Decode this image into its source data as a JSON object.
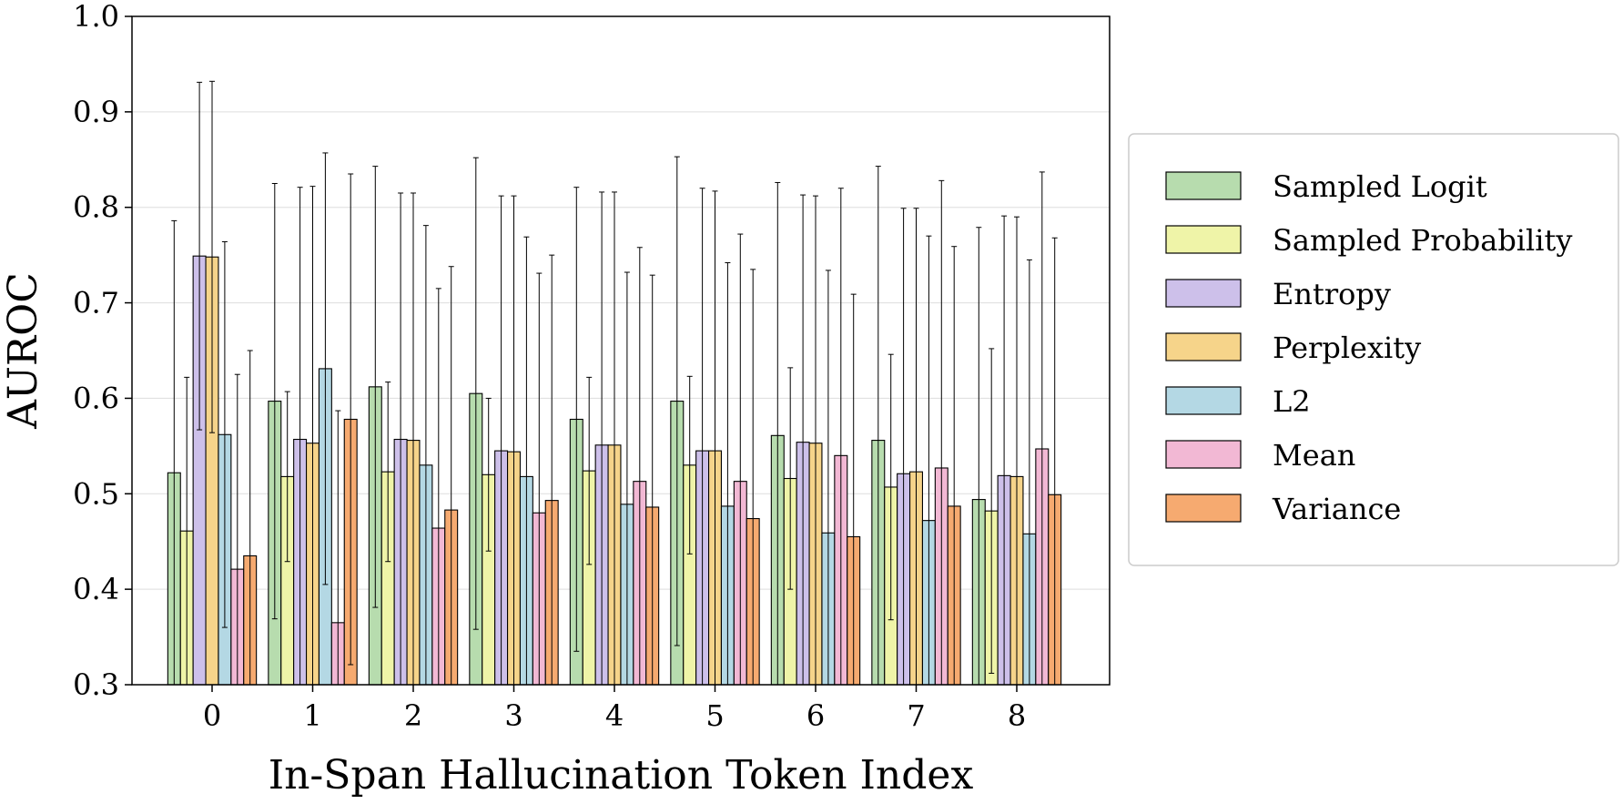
{
  "chart_data": {
    "type": "bar",
    "title": "",
    "xlabel": "In-Span Hallucination Token Index",
    "ylabel": "AUROC",
    "categories": [
      "0",
      "1",
      "2",
      "3",
      "4",
      "5",
      "6",
      "7",
      "8"
    ],
    "ylim": [
      0.3,
      1.0
    ],
    "yticks": [
      "0.3",
      "0.4",
      "0.5",
      "0.6",
      "0.7",
      "0.8",
      "0.9",
      "1.0"
    ],
    "grid": true,
    "legend_position": "right",
    "error_bars": true,
    "series": [
      {
        "name": "Sampled Logit",
        "color": "#b7dcae",
        "values": [
          0.522,
          0.597,
          0.612,
          0.605,
          0.578,
          0.597,
          0.561,
          0.556,
          0.494
        ],
        "errors": [
          0.264,
          0.228,
          0.231,
          0.247,
          0.243,
          0.256,
          0.265,
          0.287,
          0.285
        ]
      },
      {
        "name": "Sampled Probability",
        "color": "#eff4a8",
        "values": [
          0.461,
          0.518,
          0.523,
          0.52,
          0.524,
          0.53,
          0.516,
          0.507,
          0.482
        ],
        "errors": [
          0.161,
          0.089,
          0.094,
          0.08,
          0.098,
          0.093,
          0.116,
          0.139,
          0.17
        ]
      },
      {
        "name": "Entropy",
        "color": "#cdc0ea",
        "values": [
          0.749,
          0.557,
          0.557,
          0.545,
          0.551,
          0.545,
          0.554,
          0.521,
          0.519
        ],
        "errors": [
          0.182,
          0.264,
          0.258,
          0.267,
          0.265,
          0.275,
          0.259,
          0.278,
          0.272
        ]
      },
      {
        "name": "Perplexity",
        "color": "#f6d48a",
        "values": [
          0.748,
          0.553,
          0.556,
          0.544,
          0.551,
          0.545,
          0.553,
          0.523,
          0.518
        ],
        "errors": [
          0.184,
          0.269,
          0.259,
          0.268,
          0.265,
          0.272,
          0.259,
          0.276,
          0.272
        ]
      },
      {
        "name": "L2",
        "color": "#b4d8e4",
        "values": [
          0.562,
          0.631,
          0.53,
          0.518,
          0.489,
          0.487,
          0.459,
          0.472,
          0.458
        ],
        "errors": [
          0.202,
          0.226,
          0.251,
          0.251,
          0.243,
          0.255,
          0.275,
          0.298,
          0.287
        ]
      },
      {
        "name": "Mean",
        "color": "#f2b8d4",
        "values": [
          0.421,
          0.365,
          0.464,
          0.48,
          0.513,
          0.513,
          0.54,
          0.527,
          0.547
        ],
        "errors": [
          0.204,
          0.222,
          0.251,
          0.251,
          0.245,
          0.259,
          0.28,
          0.301,
          0.29
        ]
      },
      {
        "name": "Variance",
        "color": "#f6aa70",
        "values": [
          0.435,
          0.578,
          0.483,
          0.493,
          0.486,
          0.474,
          0.455,
          0.487,
          0.499
        ],
        "errors": [
          0.215,
          0.257,
          0.255,
          0.257,
          0.243,
          0.261,
          0.254,
          0.272,
          0.269
        ]
      }
    ]
  }
}
